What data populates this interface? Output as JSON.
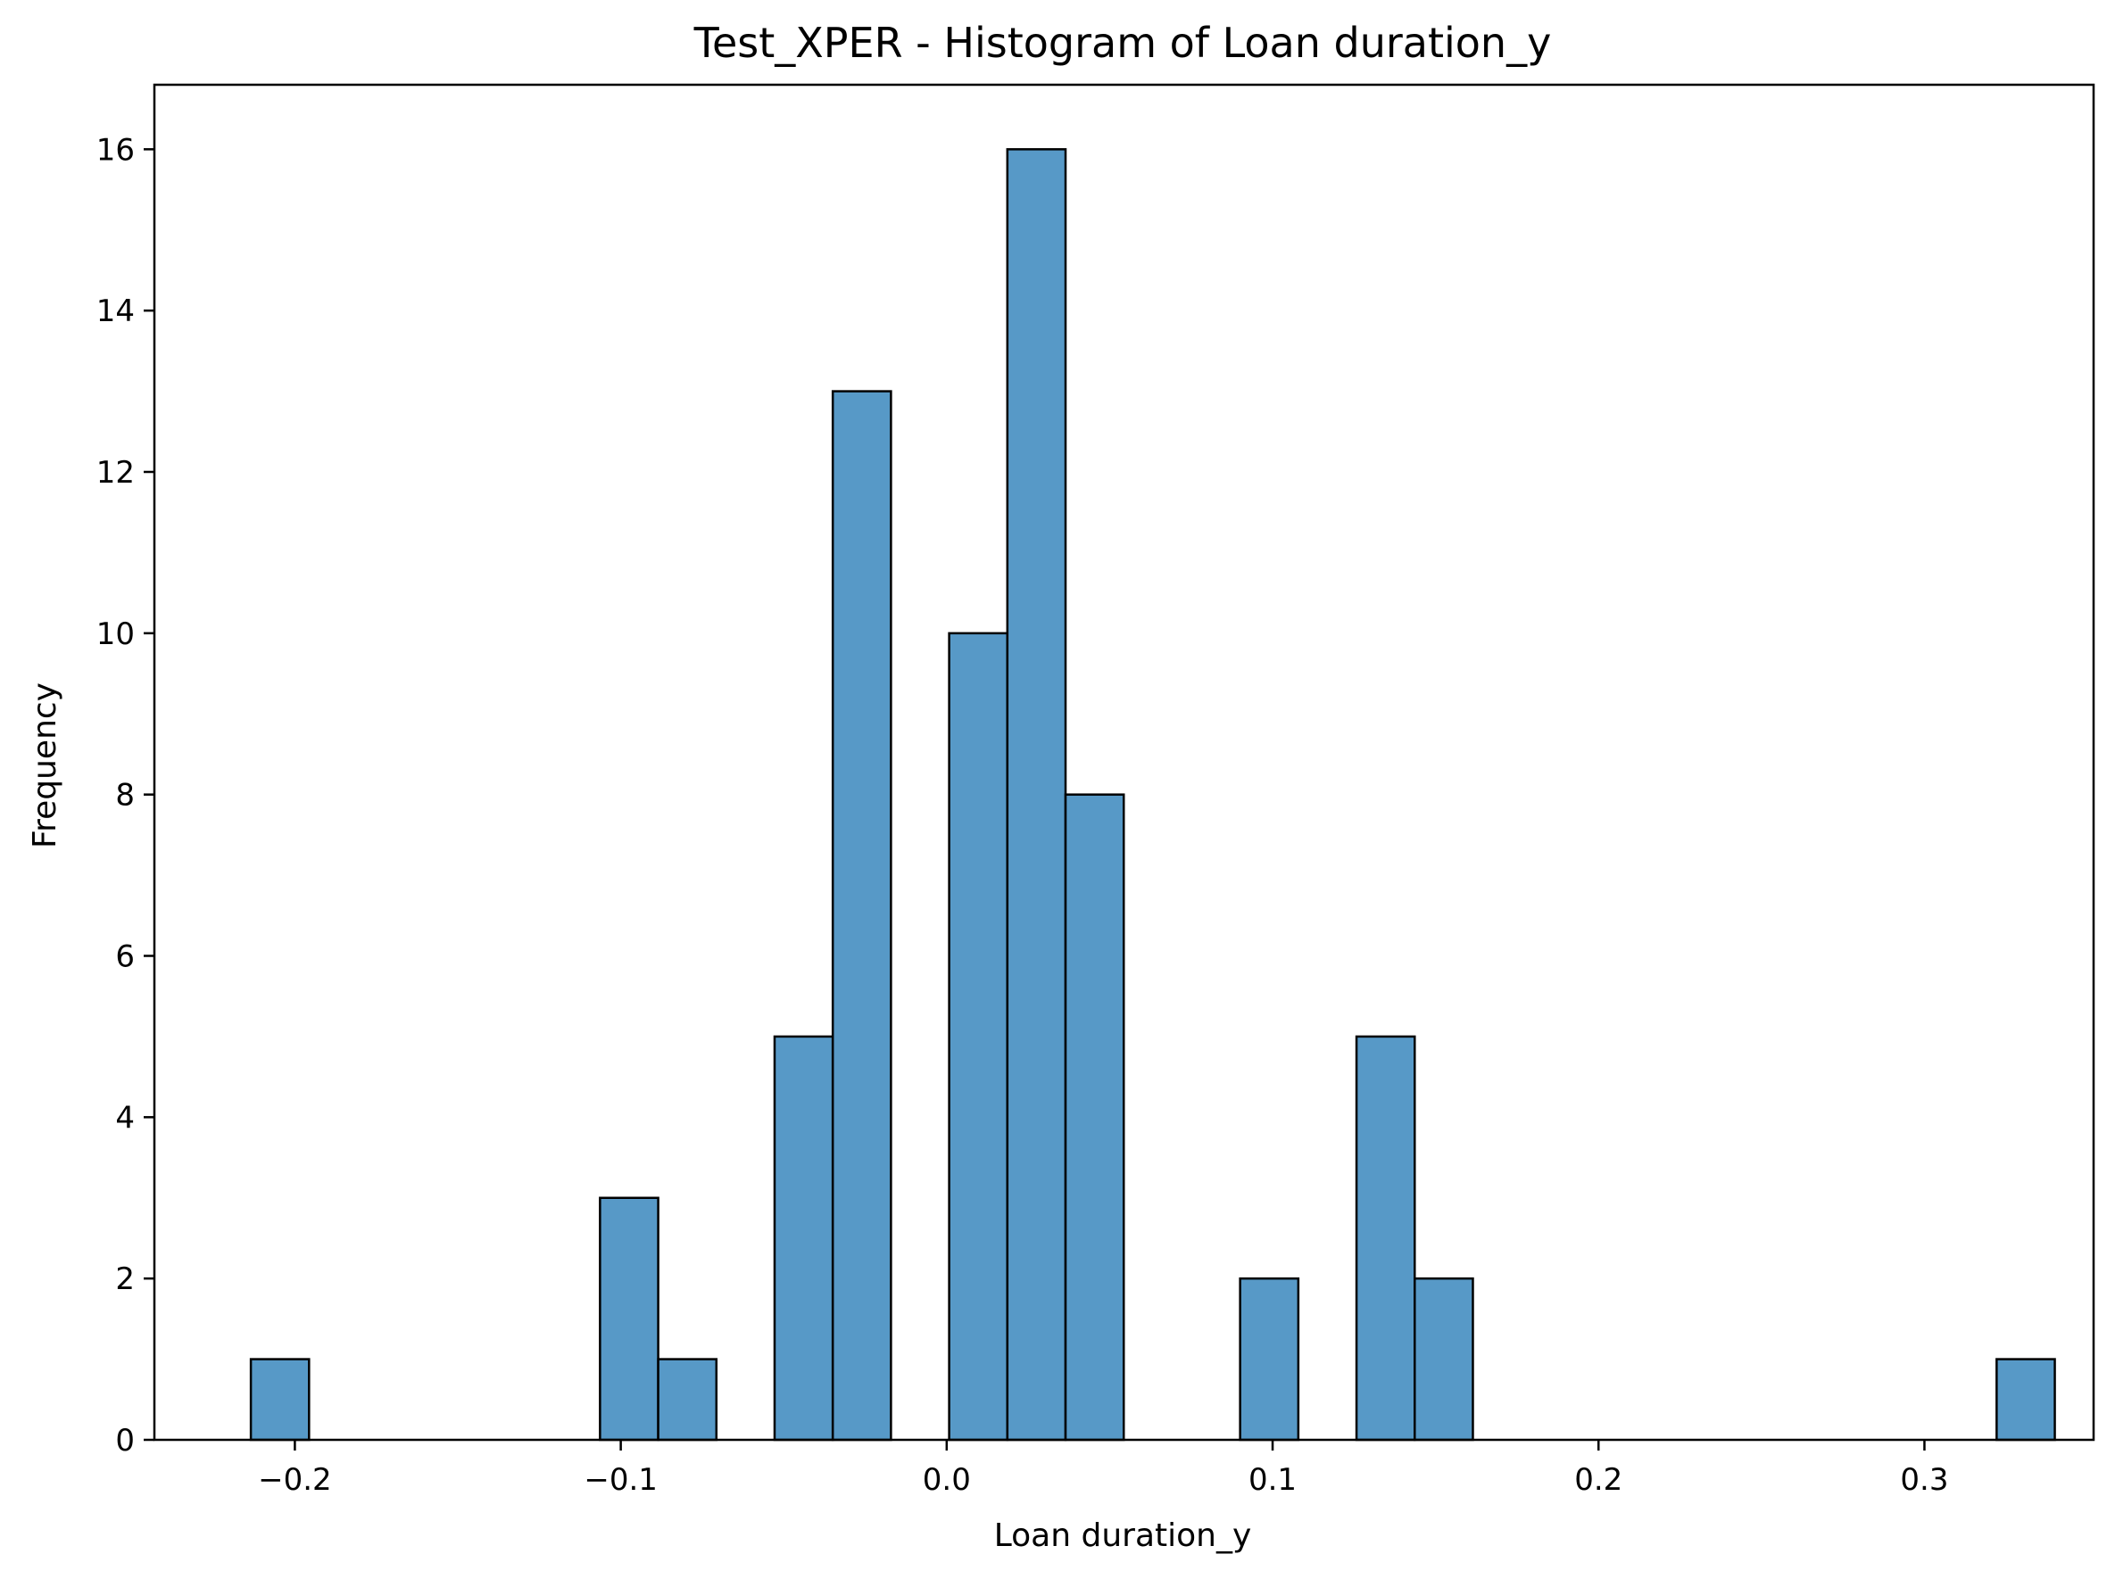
{
  "chart_data": {
    "type": "bar",
    "title": "Test_XPER - Histogram of Loan duration_y",
    "xlabel": "Loan duration_y",
    "ylabel": "Frequency",
    "xlim": [
      -0.2431,
      0.3519
    ],
    "ylim": [
      0,
      16.8
    ],
    "x_ticks": [
      -0.2,
      -0.1,
      0.0,
      0.1,
      0.2,
      0.3
    ],
    "x_tick_labels": [
      "−0.2",
      "−0.1",
      "0.0",
      "0.1",
      "0.2",
      "0.3"
    ],
    "y_ticks": [
      0,
      2,
      4,
      6,
      8,
      10,
      12,
      14,
      16
    ],
    "y_tick_labels": [
      "0",
      "2",
      "4",
      "6",
      "8",
      "10",
      "12",
      "14",
      "16"
    ],
    "bin_start": -0.2135,
    "bin_width": 0.017855,
    "counts": [
      1,
      0,
      0,
      0,
      0,
      0,
      3,
      1,
      0,
      5,
      13,
      0,
      10,
      16,
      8,
      0,
      0,
      2,
      0,
      5,
      2,
      0,
      0,
      0,
      0,
      0,
      0,
      0,
      0,
      0,
      1
    ],
    "bar_color": "#5799c7",
    "edge_color": "#000000",
    "grid": false,
    "legend": "none"
  }
}
